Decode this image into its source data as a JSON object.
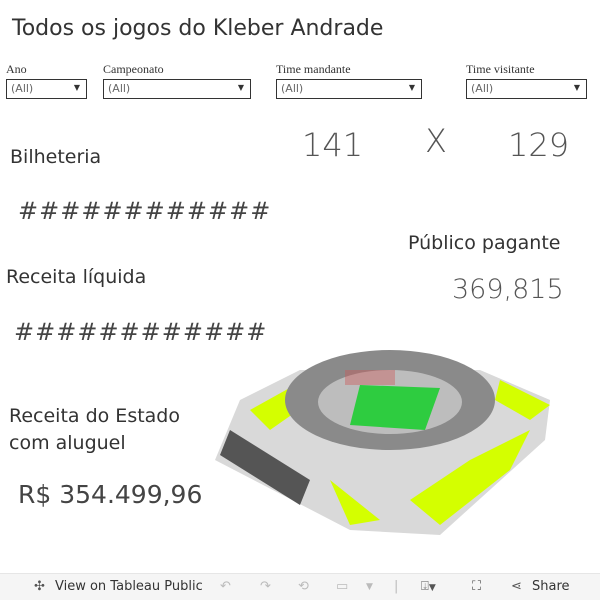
{
  "header": {
    "title": "Todos os jogos do Kleber Andrade"
  },
  "filters": [
    {
      "label": "Ano",
      "value": "(All)"
    },
    {
      "label": "Campeonato",
      "value": "(All)"
    },
    {
      "label": "Time mandante",
      "value": "(All)"
    },
    {
      "label": "Time visitante",
      "value": "(All)"
    }
  ],
  "score": {
    "home": "141",
    "separator": "X",
    "away": "129"
  },
  "bilheteria": {
    "label": "Bilheteria",
    "value": "############"
  },
  "receita_liquida": {
    "label": "Receita líquida",
    "value": "############"
  },
  "publico": {
    "label": "Público pagante",
    "value": "369,815"
  },
  "receita_estado": {
    "label_line1": "Receita do Estado",
    "label_line2": "com aluguel",
    "value": "R$ 354.499,96"
  },
  "colors": {
    "stadium_accent": "#d4ff00",
    "field": "#2ecc40"
  },
  "toolbar": {
    "view_label": "View on Tableau Public",
    "share_label": "Share"
  }
}
